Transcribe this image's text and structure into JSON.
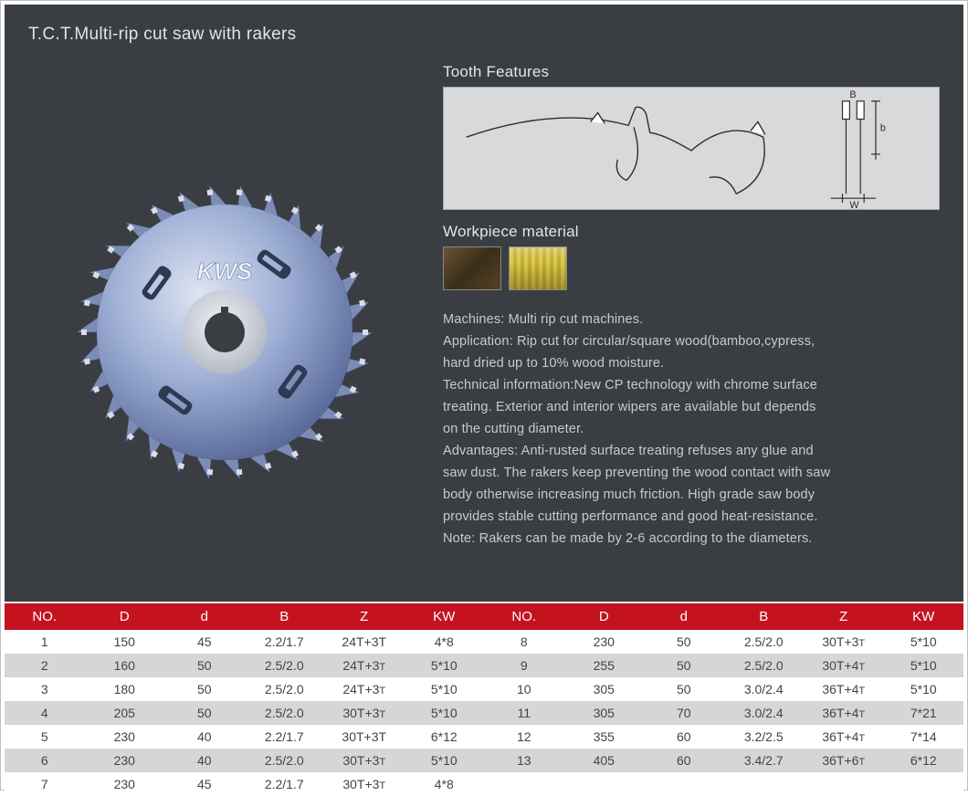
{
  "title": "T.C.T.Multi-rip cut saw with rakers",
  "sections": {
    "tooth_features": "Tooth Features",
    "workpiece_material": "Workpiece material"
  },
  "materials": [
    {
      "name": "dark-wood",
      "css": "swatch-dark"
    },
    {
      "name": "yellow-wood",
      "css": "swatch-yellow"
    }
  ],
  "description_lines": [
    "Machines:  Multi rip cut machines.",
    "Application: Rip cut for circular/square wood(bamboo,cypress,",
    "hard  dried up to 10% wood moisture.",
    "Technical information:New CP technology with chrome surface",
    "treating.  Exterior and interior wipers are available but depends",
    "on the cutting diameter.",
    "Advantages: Anti-rusted surface treating refuses any glue and",
    "saw dust. The rakers keep preventing the wood contact with saw",
    "body otherwise increasing much friction. High grade saw body",
    "provides stable cutting performance and good heat-resistance.",
    "Note: Rakers can be made by 2-6 according to the diameters."
  ],
  "table": {
    "columns": [
      "NO.",
      "D",
      "d",
      "B",
      "Z",
      "KW"
    ],
    "header_bg": "#c4131f",
    "header_fg": "#ffffff",
    "row_odd_bg": "#ffffff",
    "row_even_bg": "#d6d6d7",
    "left_rows": [
      {
        "no": "1",
        "D": "150",
        "d": "45",
        "B": "2.2/1.7",
        "Z": "24T+3T",
        "KW": "4*8",
        "z_small": false
      },
      {
        "no": "2",
        "D": "160",
        "d": "50",
        "B": "2.5/2.0",
        "Z": "24T+3T",
        "KW": "5*10",
        "z_small": true
      },
      {
        "no": "3",
        "D": "180",
        "d": "50",
        "B": "2.5/2.0",
        "Z": "24T+3T",
        "KW": "5*10",
        "z_small": true
      },
      {
        "no": "4",
        "D": "205",
        "d": "50",
        "B": "2.5/2.0",
        "Z": "30T+3T",
        "KW": "5*10",
        "z_small": true
      },
      {
        "no": "5",
        "D": "230",
        "d": "40",
        "B": "2.2/1.7",
        "Z": "30T+3T",
        "KW": "6*12",
        "z_small": false
      },
      {
        "no": "6",
        "D": "230",
        "d": "40",
        "B": "2.5/2.0",
        "Z": "30T+3T",
        "KW": "5*10",
        "z_small": true
      },
      {
        "no": "7",
        "D": "230",
        "d": "45",
        "B": "2.2/1.7",
        "Z": "30T+3T",
        "KW": "4*8",
        "z_small": true
      }
    ],
    "right_rows": [
      {
        "no": "8",
        "D": "230",
        "d": "50",
        "B": "2.5/2.0",
        "Z": "30T+3T",
        "KW": "5*10",
        "z_small": true
      },
      {
        "no": "9",
        "D": "255",
        "d": "50",
        "B": "2.5/2.0",
        "Z": "30T+4T",
        "KW": "5*10",
        "z_small": true
      },
      {
        "no": "10",
        "D": "305",
        "d": "50",
        "B": "3.0/2.4",
        "Z": "36T+4T",
        "KW": "5*10",
        "z_small": true
      },
      {
        "no": "11",
        "D": "305",
        "d": "70",
        "B": "3.0/2.4",
        "Z": "36T+4T",
        "KW": "7*21",
        "z_small": true
      },
      {
        "no": "12",
        "D": "355",
        "d": "60",
        "B": "3.2/2.5",
        "Z": "36T+4T",
        "KW": "7*14",
        "z_small": true
      },
      {
        "no": "13",
        "D": "405",
        "d": "60",
        "B": "3.4/2.7",
        "Z": "36T+6T",
        "KW": "6*12",
        "z_small": true
      }
    ]
  },
  "tooth_diagram": {
    "bg": "#d8d9db",
    "stroke": "#2b2b2b",
    "labels": [
      "B",
      "W",
      "b"
    ]
  },
  "saw_blade": {
    "teeth": 30,
    "rakers": 4,
    "disc_color_light": "#b8c4e0",
    "disc_color_dark": "#5a6a9a",
    "hub_color": "#d8dce6",
    "logo": "KWS"
  }
}
